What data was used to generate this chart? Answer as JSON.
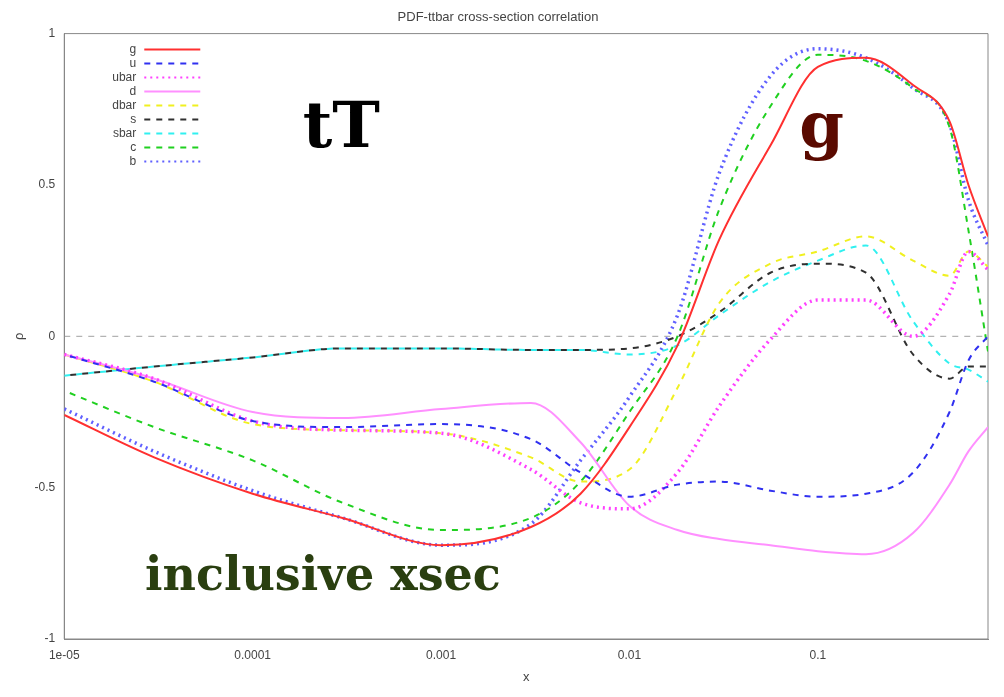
{
  "chart_data": {
    "type": "line",
    "title": "PDF-ttbar cross-section correlation",
    "xlabel": "x",
    "ylabel": "ρ",
    "log": "x",
    "grid": false,
    "legend": "top left",
    "marker": "none",
    "x": [
      1e-05,
      3e-05,
      0.0001,
      0.0003,
      0.001,
      0.003,
      0.0055,
      0.01,
      0.018,
      0.03,
      0.056,
      0.1,
      0.18,
      0.32,
      0.5,
      0.63,
      0.8
    ],
    "xlim": [
      1e-05,
      0.8
    ],
    "xticks": [
      {
        "value": 1e-05,
        "label": "1e-05"
      },
      0.0001,
      0.001,
      0.01,
      0.1
    ],
    "ylim": [
      -1,
      1
    ],
    "yticks": [
      -1,
      -0.5,
      0,
      0.5,
      1
    ],
    "ref_lines": [
      {
        "axis": "y",
        "value": 0,
        "label": null,
        "color": "#a0a0a0",
        "line_style": "dashed"
      }
    ],
    "annotations": [
      "tT",
      "g",
      "inclusive xsec"
    ],
    "series": [
      {
        "name": "g",
        "color": "#ff3030",
        "line_style": "solid",
        "values": [
          -0.26,
          -0.4,
          -0.52,
          -0.6,
          -0.69,
          -0.63,
          -0.52,
          -0.3,
          -0.03,
          0.32,
          0.63,
          0.89,
          0.92,
          0.83,
          0.71,
          0.5,
          0.33
        ]
      },
      {
        "name": "u",
        "color": "#3030f0",
        "line_style": "dashed",
        "values": [
          -0.06,
          -0.15,
          -0.28,
          -0.3,
          -0.29,
          -0.34,
          -0.45,
          -0.53,
          -0.49,
          -0.48,
          -0.51,
          -0.53,
          -0.52,
          -0.45,
          -0.25,
          -0.08,
          0.0
        ]
      },
      {
        "name": "ubar",
        "color": "#ff40ff",
        "line_style": "dotted",
        "values": [
          -0.06,
          -0.14,
          -0.28,
          -0.31,
          -0.32,
          -0.44,
          -0.55,
          -0.57,
          -0.45,
          -0.23,
          -0.01,
          0.12,
          0.12,
          0.0,
          0.14,
          0.28,
          0.22
        ]
      },
      {
        "name": "d",
        "color": "#ff90ff",
        "line_style": "solid",
        "values": [
          -0.06,
          -0.14,
          -0.25,
          -0.27,
          -0.24,
          -0.22,
          -0.35,
          -0.56,
          -0.64,
          -0.67,
          -0.69,
          -0.71,
          -0.72,
          -0.65,
          -0.49,
          -0.38,
          -0.3
        ]
      },
      {
        "name": "dbar",
        "color": "#f0f020",
        "line_style": "dashed",
        "values": [
          -0.06,
          -0.15,
          -0.29,
          -0.31,
          -0.32,
          -0.4,
          -0.48,
          -0.44,
          -0.17,
          0.11,
          0.24,
          0.28,
          0.33,
          0.25,
          0.2,
          0.28,
          0.23
        ]
      },
      {
        "name": "s",
        "color": "#303030",
        "line_style": "dashed",
        "values": [
          -0.13,
          -0.1,
          -0.07,
          -0.04,
          -0.04,
          -0.045,
          -0.045,
          -0.04,
          0.0,
          0.08,
          0.21,
          0.24,
          0.21,
          -0.06,
          -0.14,
          -0.1,
          -0.1
        ]
      },
      {
        "name": "sbar",
        "color": "#30f0f0",
        "line_style": "dashed",
        "values": [
          -0.13,
          -0.1,
          -0.07,
          -0.04,
          -0.04,
          -0.045,
          -0.045,
          -0.06,
          -0.03,
          0.07,
          0.18,
          0.25,
          0.3,
          0.05,
          -0.09,
          -0.11,
          -0.15
        ]
      },
      {
        "name": "c",
        "color": "#20d020",
        "line_style": "dashed",
        "values": [
          -0.18,
          -0.3,
          -0.41,
          -0.55,
          -0.64,
          -0.6,
          -0.48,
          -0.25,
          0.0,
          0.42,
          0.76,
          0.93,
          0.91,
          0.82,
          0.69,
          0.35,
          -0.05
        ]
      },
      {
        "name": "b",
        "color": "#6060ff",
        "line_style": "dotted",
        "values": [
          -0.24,
          -0.38,
          -0.51,
          -0.6,
          -0.69,
          -0.62,
          -0.41,
          -0.2,
          0.07,
          0.54,
          0.86,
          0.95,
          0.92,
          0.82,
          0.7,
          0.45,
          0.3
        ]
      }
    ]
  }
}
